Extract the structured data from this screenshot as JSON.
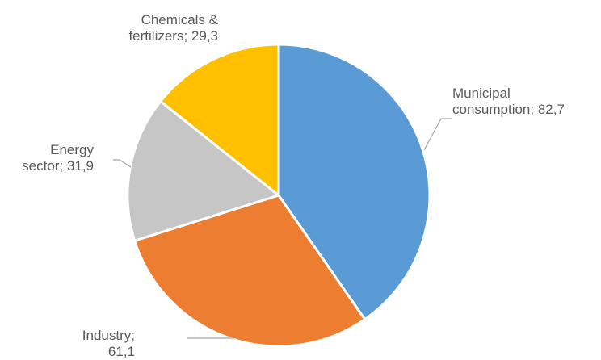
{
  "chart_data": {
    "type": "pie",
    "title": "",
    "slices": [
      {
        "label_lines": [
          "Municipal",
          "consumption; 82,7"
        ],
        "name": "Municipal consumption",
        "value": 82.7,
        "color": "#5B9BD5"
      },
      {
        "label_lines": [
          "Industry;",
          "61,1"
        ],
        "name": "Industry",
        "value": 61.1,
        "color": "#ED7D31"
      },
      {
        "label_lines": [
          "Energy",
          "sector; 31,9"
        ],
        "name": "Energy sector",
        "value": 31.9,
        "color": "#C6C6C6"
      },
      {
        "label_lines": [
          "Chemicals &",
          "fertilizers; 29,3"
        ],
        "name": "Chemicals & fertilizers",
        "value": 29.3,
        "color": "#FFC000"
      }
    ],
    "start_angle_deg": 0,
    "direction": "clockwise",
    "legend": "none",
    "label_color": "#595959",
    "leader_color": "#A6A6A6"
  }
}
